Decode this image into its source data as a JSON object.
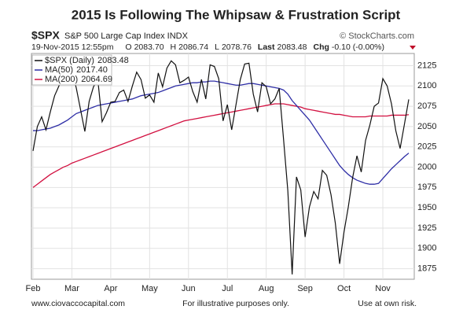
{
  "chart_data": {
    "type": "line",
    "title": "2015 Is Following The Whipsaw & Frustration Script",
    "ticker": "$SPX",
    "ticker_name": "S&P 500 Large Cap Index INDX",
    "source": "© StockCharts.com",
    "quote_time": "19-Nov-2015 12:55pm",
    "quote": [
      {
        "label": "O",
        "value": "2083.70"
      },
      {
        "label": "H",
        "value": "2086.74"
      },
      {
        "label": "L",
        "value": "2078.76"
      },
      {
        "label": "Last",
        "value": "2083.48"
      },
      {
        "label": "Chg",
        "value": "-0.10 (-0.00%)"
      }
    ],
    "footer_left": "www.ciovaccocapital.com",
    "footer_center": "For illustrative purposes only.",
    "footer_right": "Use at own risk.",
    "categories": [
      "Feb",
      null,
      null,
      null,
      null,
      null,
      null,
      null,
      null,
      "Mar",
      null,
      null,
      null,
      null,
      null,
      null,
      null,
      null,
      "Apr",
      null,
      null,
      null,
      null,
      null,
      null,
      null,
      null,
      "May",
      null,
      null,
      null,
      null,
      null,
      null,
      null,
      null,
      "Jun",
      null,
      null,
      null,
      null,
      null,
      null,
      null,
      null,
      "Jul",
      null,
      null,
      null,
      null,
      null,
      null,
      null,
      null,
      "Aug",
      null,
      null,
      null,
      null,
      null,
      null,
      null,
      null,
      "Sep",
      null,
      null,
      null,
      null,
      null,
      null,
      null,
      null,
      "Oct",
      null,
      null,
      null,
      null,
      null,
      null,
      null,
      null,
      "Nov",
      null,
      null,
      null,
      null,
      null,
      null
    ],
    "series": [
      {
        "name": "$SPX (Daily)",
        "last_label": "2083.48",
        "color": "#111111",
        "values": [
          2020,
          2050,
          2062,
          2046,
          2068,
          2088,
          2100,
          2115,
          2104,
          2117,
          2098,
          2071,
          2044,
          2081,
          2099,
          2108,
          2056,
          2067,
          2080,
          2081,
          2092,
          2095,
          2081,
          2100,
          2117,
          2108,
          2085,
          2089,
          2080,
          2116,
          2099,
          2122,
          2131,
          2126,
          2104,
          2107,
          2111,
          2093,
          2080,
          2108,
          2084,
          2126,
          2124,
          2109,
          2057,
          2077,
          2046,
          2077,
          2108,
          2127,
          2128,
          2090,
          2068,
          2104,
          2099,
          2078,
          2084,
          2097,
          2035,
          1971,
          1868,
          1988,
          1972,
          1914,
          1951,
          1970,
          1961,
          1996,
          1990,
          1966,
          1931,
          1881,
          1920,
          1951,
          1987,
          2014,
          1994,
          2033,
          2052,
          2075,
          2079,
          2109,
          2100,
          2078,
          2045,
          2023,
          2053,
          2083.48
        ]
      },
      {
        "name": "MA(50)",
        "last_label": "2017.40",
        "color": "#2e2ea6",
        "values": [
          2045,
          2045,
          2046,
          2047,
          2048,
          2050,
          2052,
          2055,
          2058,
          2062,
          2066,
          2068,
          2070,
          2072,
          2074,
          2076,
          2077,
          2078,
          2079,
          2080,
          2081,
          2082,
          2083,
          2084,
          2086,
          2088,
          2089,
          2090,
          2091,
          2092,
          2094,
          2096,
          2098,
          2100,
          2101,
          2102,
          2103,
          2104,
          2104,
          2105,
          2105,
          2106,
          2106,
          2105,
          2104,
          2103,
          2102,
          2101,
          2101,
          2102,
          2103,
          2103,
          2102,
          2101,
          2100,
          2099,
          2098,
          2097,
          2095,
          2090,
          2082,
          2076,
          2070,
          2064,
          2058,
          2050,
          2042,
          2034,
          2026,
          2018,
          2010,
          2002,
          1996,
          1991,
          1987,
          1984,
          1982,
          1980,
          1979,
          1979,
          1980,
          1986,
          1992,
          1998,
          2003,
          2008,
          2013,
          2017.4
        ]
      },
      {
        "name": "MA(200)",
        "last_label": "2064.69",
        "color": "#d21040",
        "values": [
          1975,
          1979,
          1983,
          1987,
          1991,
          1994,
          1997,
          2000,
          2002,
          2005,
          2007,
          2009,
          2011,
          2013,
          2015,
          2017,
          2019,
          2021,
          2023,
          2025,
          2027,
          2029,
          2031,
          2033,
          2035,
          2037,
          2039,
          2041,
          2043,
          2045,
          2047,
          2049,
          2051,
          2053,
          2055,
          2057,
          2058,
          2059,
          2060,
          2061,
          2062,
          2063,
          2064,
          2065,
          2066,
          2067,
          2068,
          2069,
          2070,
          2071,
          2072,
          2073,
          2074,
          2075,
          2076,
          2077,
          2078,
          2078,
          2078,
          2077,
          2076,
          2075,
          2074,
          2072,
          2071,
          2070,
          2069,
          2068,
          2067,
          2066,
          2065,
          2065,
          2064,
          2063,
          2062,
          2062,
          2062,
          2062,
          2063,
          2063,
          2063,
          2063,
          2063,
          2064,
          2064,
          2064,
          2064,
          2064.69
        ]
      }
    ],
    "ylim": [
      1862,
      2140
    ],
    "yticks": [
      1875,
      1900,
      1925,
      1950,
      1975,
      2000,
      2025,
      2050,
      2075,
      2100,
      2125
    ],
    "grid": true
  }
}
